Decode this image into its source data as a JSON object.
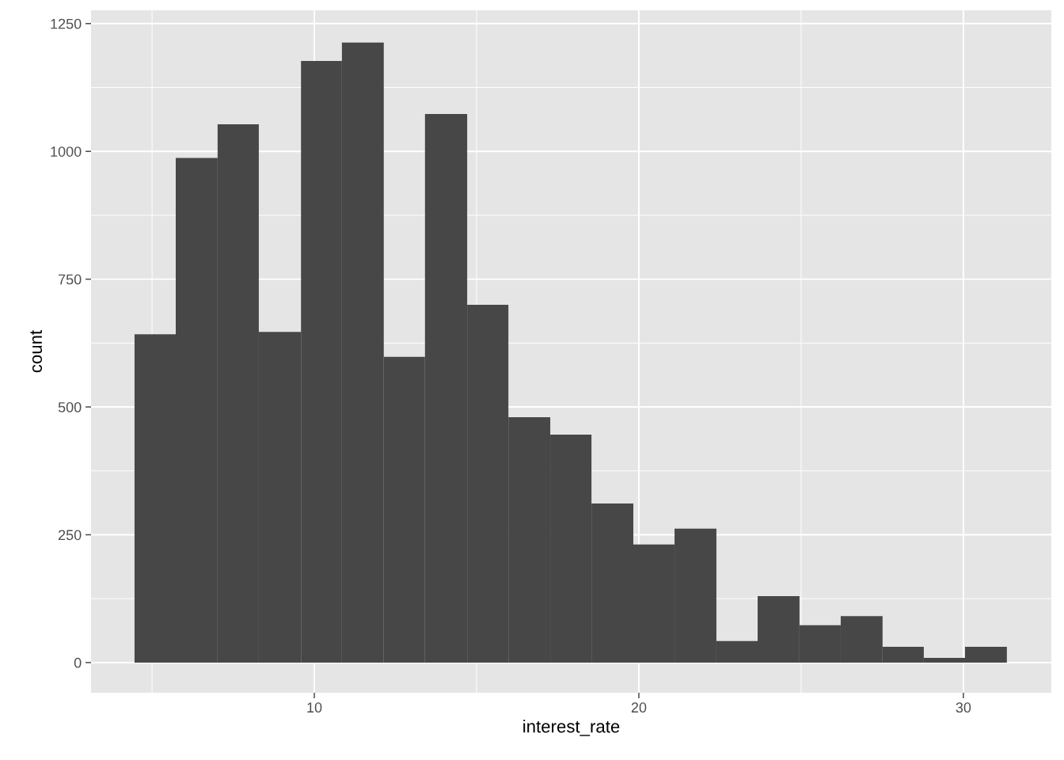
{
  "chart_data": {
    "type": "histogram",
    "xlabel": "interest_rate",
    "ylabel": "count",
    "bins": [
      4.46,
      5.73,
      7.02,
      8.29,
      9.59,
      10.85,
      12.14,
      13.41,
      14.71,
      15.98,
      17.27,
      18.54,
      19.83,
      21.1,
      22.39,
      23.66,
      24.95,
      26.22,
      27.51,
      28.78,
      30.05,
      31.34
    ],
    "values": [
      642,
      987,
      1053,
      647,
      1177,
      1213,
      598,
      1073,
      700,
      480,
      446,
      311,
      231,
      262,
      42,
      130,
      73,
      91,
      31,
      9,
      31
    ],
    "color": "#474747",
    "xlim": [
      3.12,
      32.71
    ],
    "ylim": [
      -59,
      1276
    ],
    "xticks": [
      10,
      20,
      30
    ],
    "yticks": [
      0,
      250,
      500,
      750,
      1000,
      1250
    ],
    "grid": true
  }
}
